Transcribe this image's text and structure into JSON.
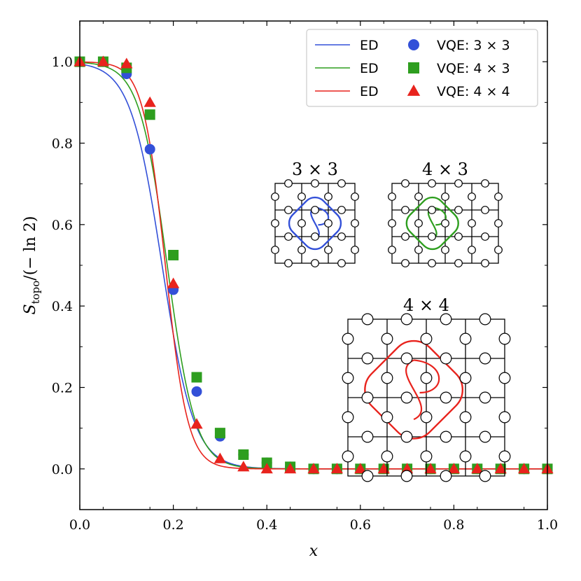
{
  "chart_data": {
    "type": "line",
    "title": "",
    "xlabel": "x",
    "ylabel_main": "S",
    "ylabel_sub": "topo",
    "ylabel_rest": "/(− ln 2)",
    "xlim": [
      0.0,
      1.0
    ],
    "ylim": [
      -0.1,
      1.1
    ],
    "x_ticks": [
      0.0,
      0.2,
      0.4,
      0.6,
      0.8,
      1.0
    ],
    "x_tick_labels": [
      "0.0",
      "0.2",
      "0.4",
      "0.6",
      "0.8",
      "1.0"
    ],
    "y_ticks": [
      0.0,
      0.2,
      0.4,
      0.6,
      0.8,
      1.0
    ],
    "y_tick_labels": [
      "0.0",
      "0.2",
      "0.4",
      "0.6",
      "0.8",
      "1.0"
    ],
    "grid": false,
    "legend_position": "top-right",
    "series": [
      {
        "name": "ED",
        "kind": "line",
        "color": "#3350d8",
        "x0": 0.176,
        "width": 0.034
      },
      {
        "name": "ED",
        "kind": "line",
        "color": "#2e9e1f",
        "x0": 0.187,
        "width": 0.03
      },
      {
        "name": "ED",
        "kind": "line",
        "color": "#e8231d",
        "x0": 0.183,
        "width": 0.024
      },
      {
        "name": "VQE: 3 × 3",
        "kind": "scatter",
        "marker": "circle",
        "color": "#3350d8",
        "x": [
          0.0,
          0.05,
          0.1,
          0.15,
          0.2,
          0.25,
          0.3,
          0.35,
          0.4,
          0.45,
          0.5,
          0.55,
          0.6,
          0.65,
          0.7,
          0.75,
          0.8,
          0.85,
          0.9,
          0.95,
          1.0
        ],
        "y": [
          1.0,
          1.0,
          0.97,
          0.785,
          0.44,
          0.19,
          0.08,
          0.035,
          0.015,
          0.005,
          0.0,
          0.0,
          0.0,
          0.0,
          0.0,
          0.0,
          0.0,
          0.0,
          0.0,
          0.0,
          0.0
        ]
      },
      {
        "name": "VQE: 4 × 3",
        "kind": "scatter",
        "marker": "square",
        "color": "#2e9e1f",
        "x": [
          0.0,
          0.05,
          0.1,
          0.15,
          0.2,
          0.25,
          0.3,
          0.35,
          0.4,
          0.45,
          0.5,
          0.55,
          0.6,
          0.65,
          0.7,
          0.75,
          0.8,
          0.85,
          0.9,
          0.95,
          1.0
        ],
        "y": [
          1.0,
          1.0,
          0.985,
          0.87,
          0.525,
          0.225,
          0.088,
          0.035,
          0.015,
          0.005,
          0.0,
          0.0,
          0.0,
          0.0,
          0.0,
          0.0,
          0.0,
          0.0,
          0.0,
          0.0,
          0.0
        ]
      },
      {
        "name": "VQE: 4 × 4",
        "kind": "scatter",
        "marker": "triangle",
        "color": "#e8231d",
        "x": [
          0.0,
          0.05,
          0.1,
          0.15,
          0.2,
          0.25,
          0.3,
          0.35,
          0.4,
          0.45,
          0.5,
          0.55,
          0.6,
          0.65,
          0.7,
          0.75,
          0.8,
          0.85,
          0.9,
          0.95,
          1.0
        ],
        "y": [
          1.0,
          1.0,
          0.995,
          0.9,
          0.455,
          0.11,
          0.025,
          0.005,
          0.0,
          0.0,
          0.0,
          0.0,
          0.0,
          0.0,
          0.0,
          0.0,
          0.0,
          0.0,
          0.0,
          0.0,
          0.0
        ]
      }
    ],
    "legend": {
      "rows": [
        {
          "line_label": "ED",
          "marker_label": "VQE: 3 × 3"
        },
        {
          "line_label": "ED",
          "marker_label": "VQE: 4 × 3"
        },
        {
          "line_label": "ED",
          "marker_label": "VQE: 4 × 4"
        }
      ]
    },
    "insets": [
      {
        "title": "3 × 3",
        "color": "#3350d8"
      },
      {
        "title": "4 × 3",
        "color": "#2e9e1f"
      },
      {
        "title": "4 × 4",
        "color": "#e8231d"
      }
    ]
  }
}
